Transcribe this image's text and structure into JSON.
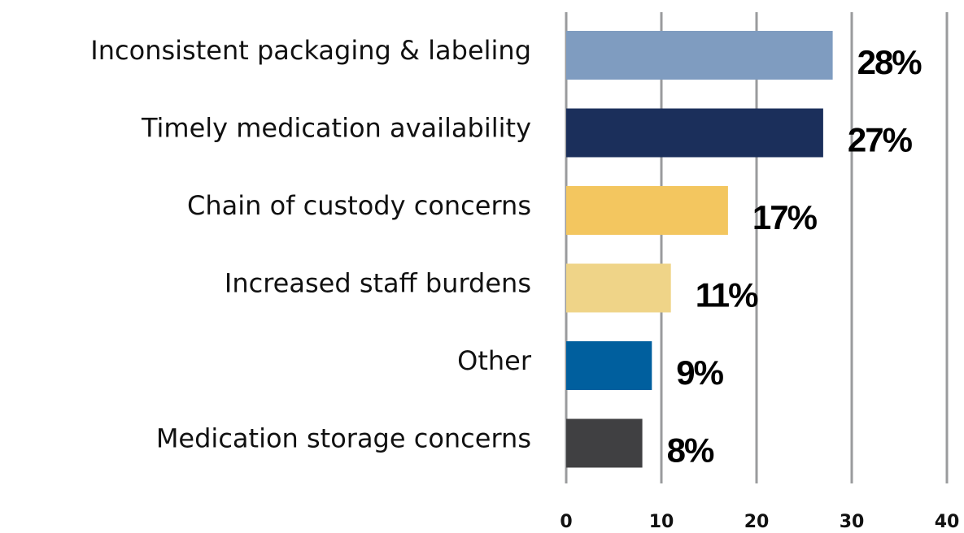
{
  "chart_data": {
    "type": "bar",
    "orientation": "horizontal",
    "categories": [
      "Inconsistent packaging & labeling",
      "Timely medication availability",
      "Chain of custody concerns",
      "Increased staff burdens",
      "Other",
      "Medication storage concerns"
    ],
    "values": [
      28,
      27,
      17,
      11,
      9,
      8
    ],
    "value_labels": [
      "28%",
      "27%",
      "17%",
      "11%",
      "9%",
      "8%"
    ],
    "colors": [
      "#7f9cc0",
      "#1b2f5b",
      "#f3c65f",
      "#efd488",
      "#005f9e",
      "#404042"
    ],
    "xlim": [
      0,
      40
    ],
    "xticks": [
      0,
      10,
      20,
      30,
      40
    ],
    "grid": true
  }
}
